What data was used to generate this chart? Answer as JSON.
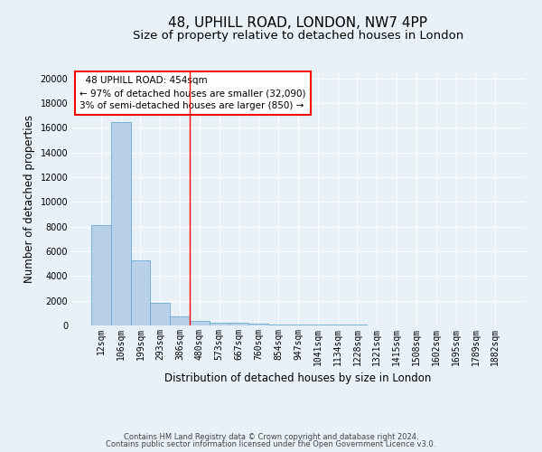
{
  "title": "48, UPHILL ROAD, LONDON, NW7 4PP",
  "subtitle": "Size of property relative to detached houses in London",
  "xlabel": "Distribution of detached houses by size in London",
  "ylabel": "Number of detached properties",
  "x_labels": [
    "12sqm",
    "106sqm",
    "199sqm",
    "293sqm",
    "386sqm",
    "480sqm",
    "573sqm",
    "667sqm",
    "760sqm",
    "854sqm",
    "947sqm",
    "1041sqm",
    "1134sqm",
    "1228sqm",
    "1321sqm",
    "1415sqm",
    "1508sqm",
    "1602sqm",
    "1695sqm",
    "1789sqm",
    "1882sqm"
  ],
  "bar_heights": [
    8100,
    16500,
    5300,
    1850,
    700,
    350,
    250,
    200,
    150,
    100,
    80,
    60,
    50,
    40,
    30,
    25,
    20,
    15,
    12,
    10,
    8
  ],
  "bar_color": "#b8d0e8",
  "bar_edge_color": "#6aaad4",
  "background_color": "#e8f0f8",
  "grid_color": "#ffffff",
  "vline_x": 5.0,
  "vline_color": "red",
  "annotation_text": "  48 UPHILL ROAD: 454sqm\n← 97% of detached houses are smaller (32,090)\n3% of semi-detached houses are larger (850) →",
  "annotation_box_color": "white",
  "annotation_box_edge_color": "red",
  "footer_line1": "Contains HM Land Registry data © Crown copyright and database right 2024.",
  "footer_line2": "Contains public sector information licensed under the Open Government Licence v3.0.",
  "ylim": [
    0,
    20500
  ],
  "yticks": [
    0,
    2000,
    4000,
    6000,
    8000,
    10000,
    12000,
    14000,
    16000,
    18000,
    20000
  ],
  "title_fontsize": 11,
  "subtitle_fontsize": 9.5,
  "tick_fontsize": 7,
  "ylabel_fontsize": 8.5,
  "xlabel_fontsize": 8.5,
  "annotation_fontsize": 7.5,
  "footer_fontsize": 6
}
